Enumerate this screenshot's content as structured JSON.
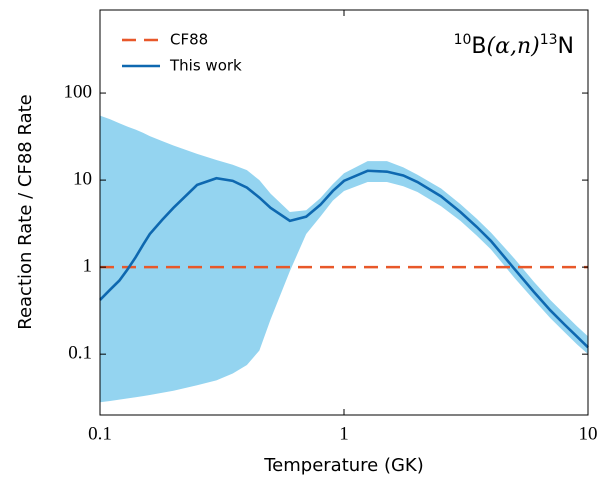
{
  "chart_data": {
    "type": "line",
    "xlabel": "Temperature (GK)",
    "ylabel": "Reaction Rate / CF88 Rate",
    "xscale": "log",
    "yscale": "log",
    "xlim": [
      0.1,
      10
    ],
    "ylim": [
      0.02,
      900
    ],
    "xticks": [
      0.1,
      1,
      10
    ],
    "yticks": [
      0.1,
      1,
      10,
      100
    ],
    "legend": "upper left",
    "annotation": {
      "mass_a": "10",
      "el_a": "B",
      "reaction": "(α,n)",
      "mass_b": "13",
      "el_b": "N"
    },
    "band": {
      "color": "#94d4f0",
      "x": [
        0.1,
        0.11,
        0.12,
        0.13,
        0.14,
        0.15,
        0.16,
        0.18,
        0.2,
        0.25,
        0.3,
        0.35,
        0.4,
        0.45,
        0.5,
        0.6,
        0.7,
        0.8,
        0.9,
        1,
        1.25,
        1.5,
        1.75,
        2,
        2.5,
        3,
        3.5,
        4,
        5,
        6,
        7,
        8,
        9,
        10
      ],
      "upper": [
        55,
        50,
        45,
        41,
        38,
        35,
        32,
        28,
        25,
        20,
        17,
        15,
        13,
        10,
        7,
        4.3,
        4.5,
        6.2,
        9,
        12,
        16.5,
        16.5,
        14,
        11.5,
        8,
        5.3,
        3.6,
        2.5,
        1.25,
        0.68,
        0.42,
        0.29,
        0.21,
        0.16
      ],
      "lower": [
        0.028,
        0.029,
        0.03,
        0.031,
        0.032,
        0.033,
        0.034,
        0.036,
        0.038,
        0.044,
        0.05,
        0.06,
        0.075,
        0.11,
        0.25,
        0.9,
        2.4,
        3.8,
        5.8,
        7.5,
        9.5,
        9.5,
        8.5,
        7.3,
        5,
        3.4,
        2.3,
        1.6,
        0.75,
        0.42,
        0.26,
        0.18,
        0.13,
        0.1
      ]
    },
    "series": [
      {
        "name": "CF88",
        "color": "#e8582a",
        "dashed": true,
        "x": [
          0.1,
          10
        ],
        "values": [
          1,
          1
        ]
      },
      {
        "name": "This work",
        "color": "#0e68b0",
        "dashed": false,
        "x": [
          0.1,
          0.11,
          0.12,
          0.13,
          0.14,
          0.15,
          0.16,
          0.18,
          0.2,
          0.25,
          0.3,
          0.35,
          0.4,
          0.45,
          0.5,
          0.6,
          0.7,
          0.8,
          0.9,
          1,
          1.25,
          1.5,
          1.75,
          2,
          2.5,
          3,
          3.5,
          4,
          5,
          6,
          7,
          8,
          9,
          10
        ],
        "values": [
          0.42,
          0.55,
          0.7,
          0.95,
          1.3,
          1.8,
          2.4,
          3.5,
          4.8,
          8.8,
          10.5,
          9.8,
          8.2,
          6.3,
          4.8,
          3.4,
          3.8,
          5.2,
          7.5,
          9.8,
          12.8,
          12.5,
          11.3,
          9.5,
          6.5,
          4.3,
          2.9,
          2.0,
          0.95,
          0.52,
          0.32,
          0.22,
          0.16,
          0.12
        ]
      }
    ]
  }
}
